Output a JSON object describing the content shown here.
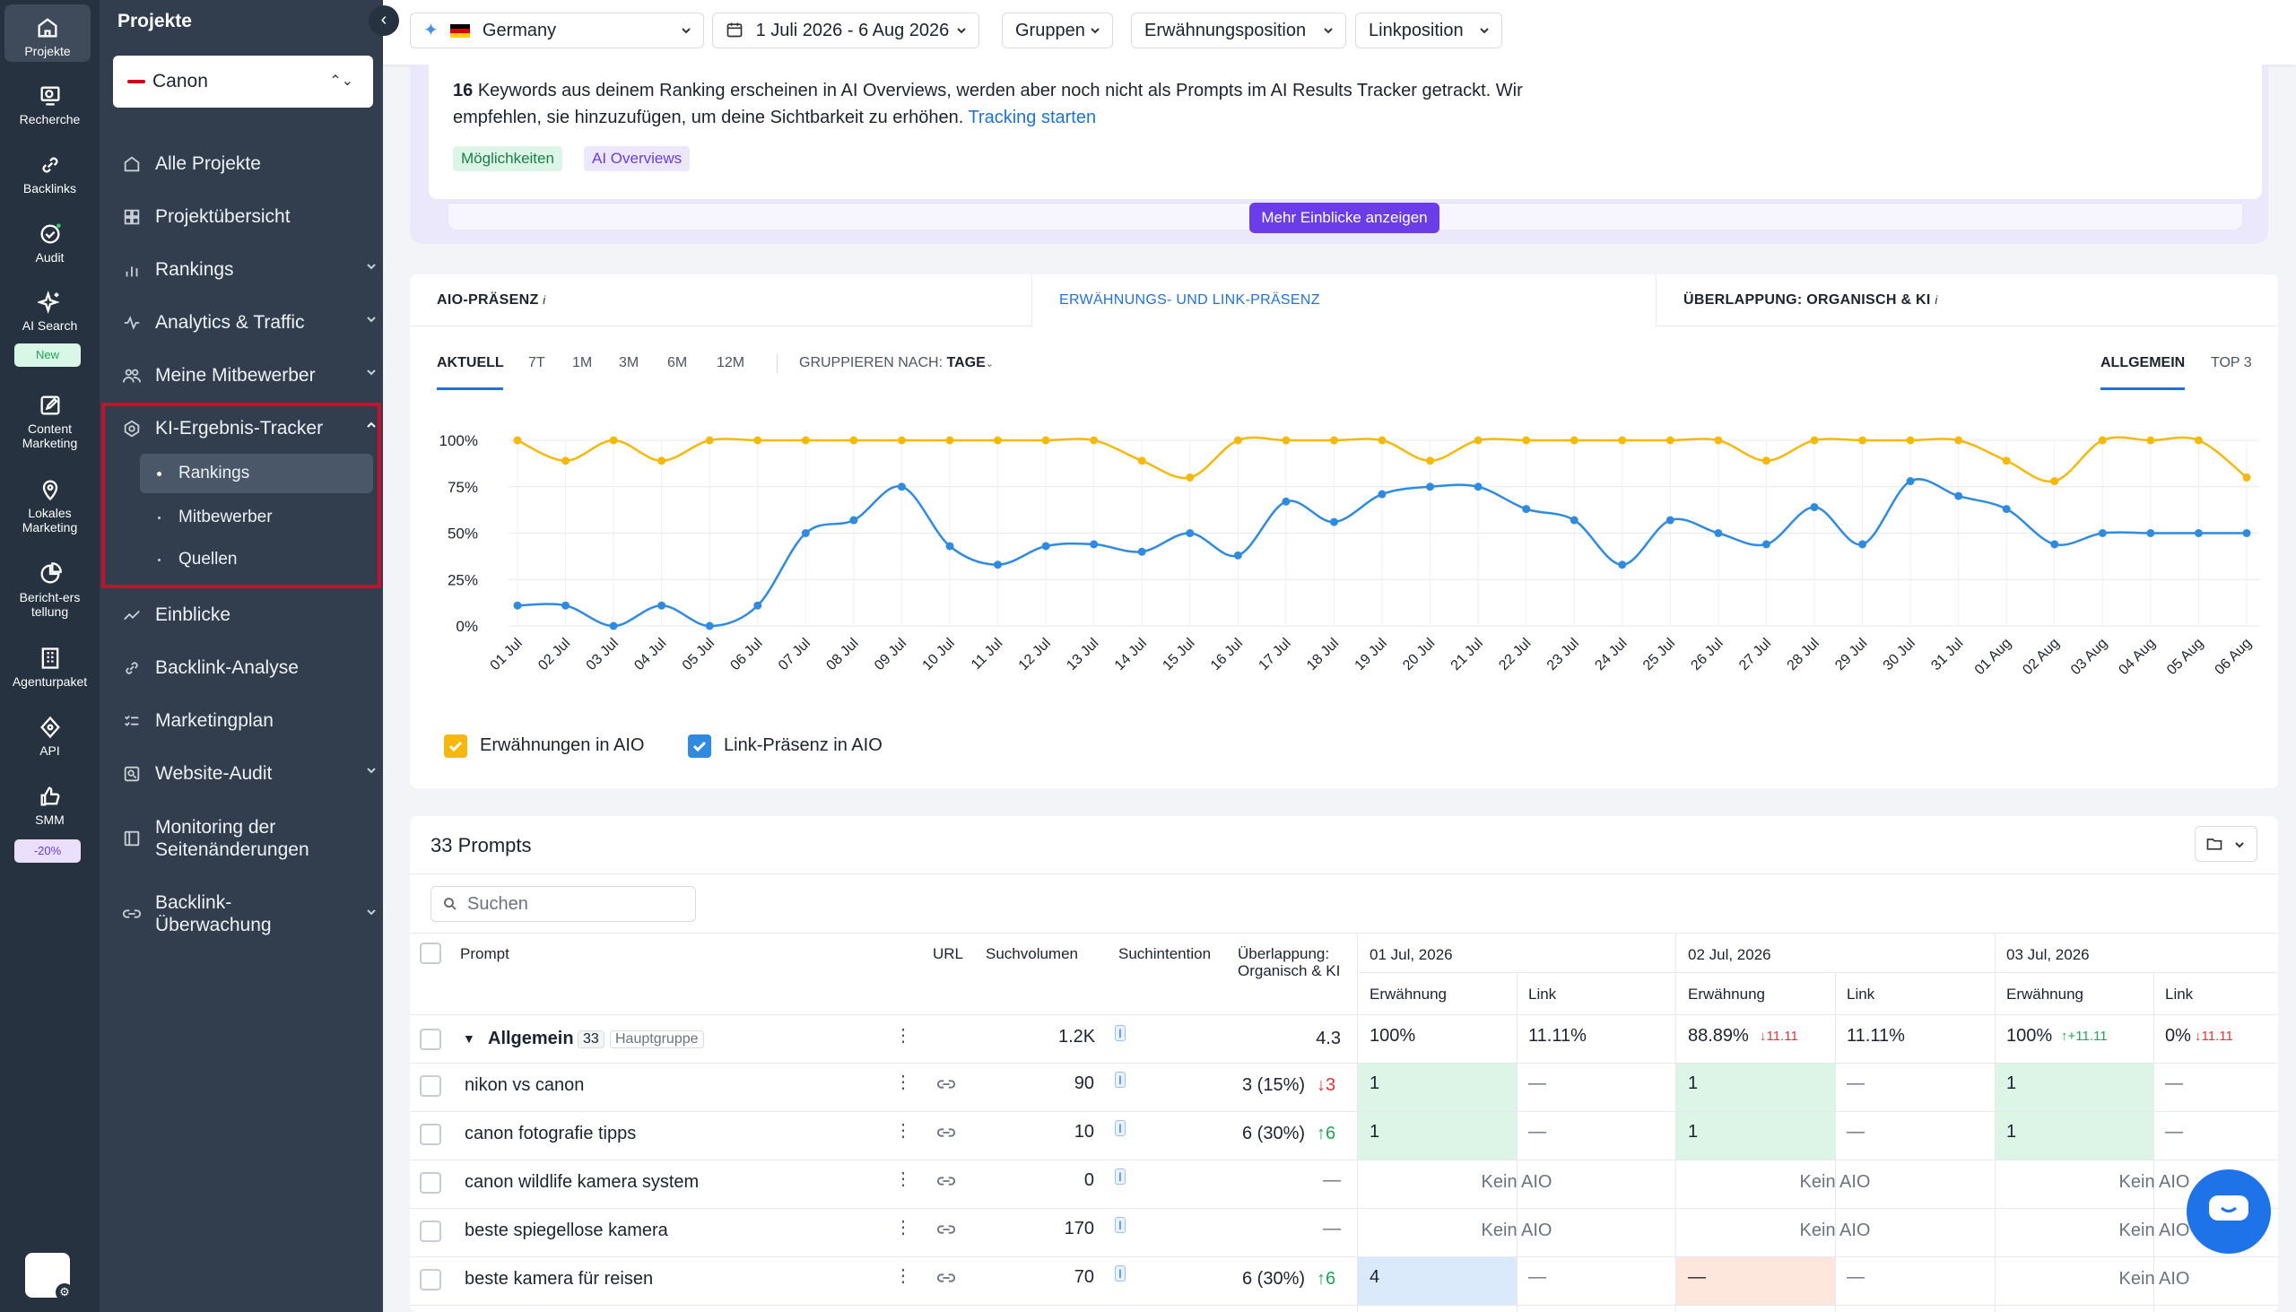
{
  "rail": {
    "items": [
      {
        "label": "Projekte",
        "icon": "home-icon"
      },
      {
        "label": "Recherche",
        "icon": "research-icon"
      },
      {
        "label": "Backlinks",
        "icon": "link-icon"
      },
      {
        "label": "Audit",
        "icon": "audit-icon"
      },
      {
        "label": "AI Search",
        "icon": "sparkle-icon",
        "badge": "New"
      },
      {
        "label": "Content Marketing",
        "icon": "edit-icon"
      },
      {
        "label": "Lokales Marketing",
        "icon": "location-icon"
      },
      {
        "label": "Bericht-erstellung",
        "icon": "report-icon"
      },
      {
        "label": "Agenturpaket",
        "icon": "building-icon"
      },
      {
        "label": "API",
        "icon": "api-icon"
      },
      {
        "label": "SMM",
        "icon": "thumb-icon",
        "badge": "-20%"
      }
    ]
  },
  "nav": {
    "title": "Projekte",
    "project": "Canon",
    "items": [
      {
        "label": "Alle Projekte"
      },
      {
        "label": "Projektübersicht"
      },
      {
        "label": "Rankings"
      },
      {
        "label": "Analytics & Traffic"
      },
      {
        "label": "Meine Mitbewerber"
      },
      {
        "label": "KI-Ergebnis-Tracker"
      },
      {
        "label": "Einblicke"
      },
      {
        "label": "Backlink-Analyse"
      },
      {
        "label": "Marketingplan"
      },
      {
        "label": "Website-Audit"
      },
      {
        "label": "Monitoring der Seitenänderungen"
      },
      {
        "label": "Backlink-Überwachung"
      }
    ],
    "subitems": [
      "Rankings",
      "Mitbewerber",
      "Quellen"
    ]
  },
  "topbar": {
    "country": "Germany",
    "date_range": "1 Juli 2026 - 6 Aug 2026",
    "groups": "Gruppen",
    "mention_position": "Erwähnungsposition",
    "link_position": "Linkposition"
  },
  "insight": {
    "count": "16",
    "text": "Keywords aus deinem Ranking erscheinen in AI Overviews, werden aber noch nicht als Prompts im AI Results Tracker getrackt. Wir empfehlen, sie hinzuzufügen, um deine Sichtbarkeit zu erhöhen.",
    "link": "Tracking starten",
    "tags": [
      "Möglichkeiten",
      "AI Overviews"
    ],
    "more_button": "Mehr Einblicke anzeigen"
  },
  "chart_tabs": [
    "AIO-PRÄSENZ",
    "ERWÄHNUNGS- UND LINK-PRÄSENZ",
    "ÜBERLAPPUNG: ORGANISCH & KI"
  ],
  "period_tabs": [
    "AKTUELL",
    "7T",
    "1M",
    "3M",
    "6M",
    "12M"
  ],
  "group_by": {
    "label": "GRUPPIEREN NACH:",
    "value": "TAGE"
  },
  "view_tabs": [
    "ALLGEMEIN",
    "TOP 3"
  ],
  "chart_data": {
    "type": "line",
    "x": [
      "01 Jul",
      "02 Jul",
      "03 Jul",
      "04 Jul",
      "05 Jul",
      "06 Jul",
      "07 Jul",
      "08 Jul",
      "09 Jul",
      "10 Jul",
      "11 Jul",
      "12 Jul",
      "13 Jul",
      "14 Jul",
      "15 Jul",
      "16 Jul",
      "17 Jul",
      "18 Jul",
      "19 Jul",
      "20 Jul",
      "21 Jul",
      "22 Jul",
      "23 Jul",
      "24 Jul",
      "25 Jul",
      "26 Jul",
      "27 Jul",
      "28 Jul",
      "29 Jul",
      "30 Jul",
      "31 Jul",
      "01 Aug",
      "02 Aug",
      "03 Aug",
      "04 Aug",
      "05 Aug",
      "06 Aug"
    ],
    "yticks": [
      "100%",
      "75%",
      "50%",
      "25%",
      "0%"
    ],
    "ylim": [
      0,
      100
    ],
    "series": [
      {
        "name": "Erwähnungen in AIO",
        "color": "#f6b80b",
        "values": [
          100,
          89,
          100,
          89,
          100,
          100,
          100,
          100,
          100,
          100,
          100,
          100,
          100,
          89,
          80,
          100,
          100,
          100,
          100,
          89,
          100,
          100,
          100,
          100,
          100,
          100,
          89,
          100,
          100,
          100,
          100,
          89,
          78,
          100,
          100,
          100,
          80
        ]
      },
      {
        "name": "Link-Präsenz in AIO",
        "color": "#2f8be0",
        "values": [
          11,
          11,
          0,
          11,
          0,
          11,
          50,
          57,
          75,
          43,
          33,
          43,
          44,
          40,
          50,
          38,
          67,
          56,
          71,
          75,
          75,
          63,
          57,
          33,
          57,
          50,
          44,
          64,
          44,
          78,
          70,
          63,
          44,
          50,
          50,
          50,
          50
        ]
      }
    ],
    "grid": true,
    "legend": "bottom-left"
  },
  "prompts": {
    "title": "33 Prompts",
    "search_placeholder": "Suchen",
    "headers": {
      "prompt": "Prompt",
      "url": "URL",
      "volume": "Suchvolumen",
      "intent": "Suchintention",
      "overlap": "Überlappung: Organisch & KI",
      "dates": [
        "01 Jul, 2026",
        "02 Jul, 2026",
        "03 Jul, 2026"
      ],
      "mention": "Erwähnung",
      "link": "Link"
    },
    "group": {
      "name": "Allgemein",
      "count": "33",
      "tag": "Hauptgruppe",
      "volume": "1.2K",
      "overlap": "4.3",
      "d1m": "100%",
      "d1l": "11.11%",
      "d2m": "88.89%",
      "d2m_delta": "11.11",
      "d2l": "11.11%",
      "d3m": "100%",
      "d3m_delta": "+11.11",
      "d3l": "0%",
      "d3l_delta": "11.11"
    },
    "rows": [
      {
        "prompt": "nikon vs canon",
        "volume": "90",
        "overlap": "3 (15%)",
        "delta": "3",
        "d1m": "1",
        "d1l": "—",
        "d2m": "1",
        "d2l": "—",
        "d3m": "1",
        "d3l": "—"
      },
      {
        "prompt": "canon fotografie tipps",
        "volume": "10",
        "overlap": "6 (30%)",
        "delta": "6",
        "d1m": "1",
        "d1l": "—",
        "d2m": "1",
        "d2l": "—",
        "d3m": "1",
        "d3l": "—"
      },
      {
        "prompt": "canon wildlife kamera system",
        "volume": "0",
        "overlap": "—",
        "no_aio": "Kein AIO"
      },
      {
        "prompt": "beste spiegellose kamera",
        "volume": "170",
        "overlap": "—",
        "no_aio": "Kein AIO"
      },
      {
        "prompt": "beste kamera für reisen",
        "volume": "70",
        "overlap": "6 (30%)",
        "delta": "6",
        "d1m": "4",
        "d1l": "—",
        "d2m": "—",
        "d2l": "—",
        "d3m": "Kein AIO"
      }
    ],
    "intent_letter": "I"
  }
}
